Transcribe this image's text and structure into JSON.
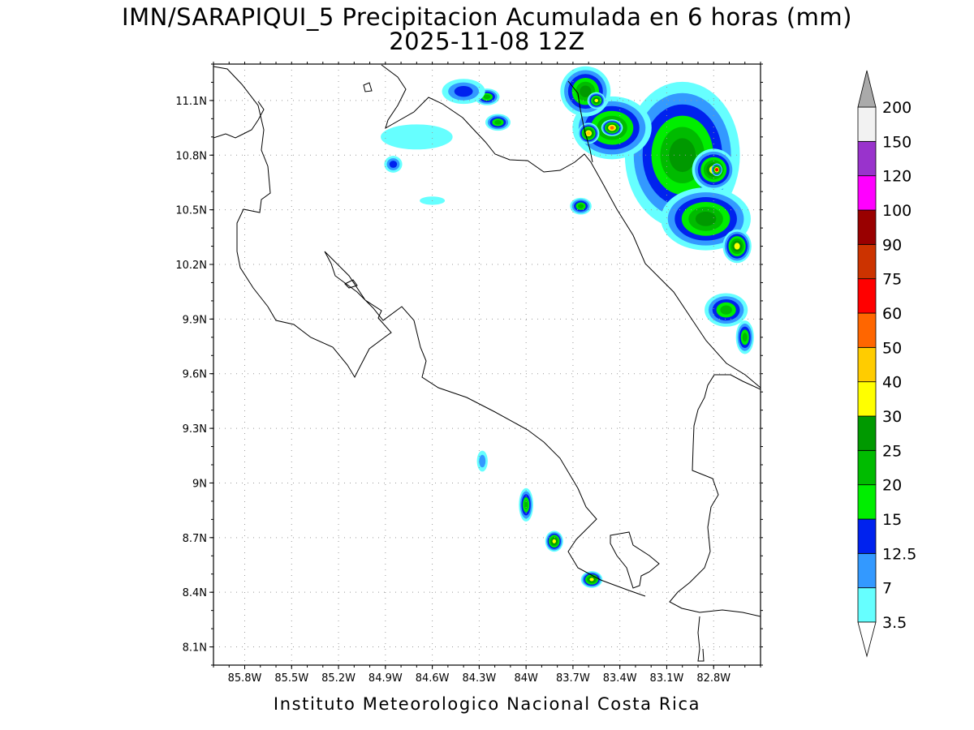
{
  "title": {
    "line1": "IMN/SARAPIQUI_5 Precipitacion Acumulada en 6 horas (mm)",
    "line2": "2025-11-08 12Z"
  },
  "footer": "Instituto Meteorologico Nacional Costa Rica",
  "map": {
    "lon_range": [
      -86.0,
      -82.5
    ],
    "lat_range": [
      8.0,
      11.3
    ],
    "lon_ticks": [
      "85.8W",
      "85.5W",
      "85.2W",
      "84.9W",
      "84.6W",
      "84.3W",
      "84W",
      "83.7W",
      "83.4W",
      "83.1W",
      "82.8W"
    ],
    "lon_tick_values": [
      -85.8,
      -85.5,
      -85.2,
      -84.9,
      -84.6,
      -84.3,
      -84.0,
      -83.7,
      -83.4,
      -83.1,
      -82.8
    ],
    "lat_ticks": [
      "8.1N",
      "8.4N",
      "8.7N",
      "9N",
      "9.3N",
      "9.6N",
      "9.9N",
      "10.2N",
      "10.5N",
      "10.8N",
      "11.1N"
    ],
    "lat_tick_values": [
      8.1,
      8.4,
      8.7,
      9.0,
      9.3,
      9.6,
      9.9,
      10.2,
      10.5,
      10.8,
      11.1
    ],
    "grid": "dotted"
  },
  "colorbar": {
    "unit": "mm",
    "labels": [
      "3.5",
      "7",
      "12.5",
      "15",
      "20",
      "25",
      "30",
      "40",
      "50",
      "60",
      "75",
      "90",
      "100",
      "120",
      "150",
      "200"
    ],
    "colors": [
      "#66ffff",
      "#3399ff",
      "#0022ee",
      "#00ee00",
      "#00bb00",
      "#009900",
      "#ffff00",
      "#ffcc00",
      "#ff6600",
      "#ff0000",
      "#cc3300",
      "#990000",
      "#ff00ff",
      "#9933cc",
      "#f2f2f2",
      "#aaaaaa"
    ]
  },
  "precip_cells": [
    {
      "lon": -83.0,
      "lat": 10.8,
      "level": "25",
      "rx": 0.32,
      "ry": 0.35
    },
    {
      "lon": -82.8,
      "lat": 10.72,
      "level": "30",
      "rx": 0.12,
      "ry": 0.1
    },
    {
      "lon": -82.78,
      "lat": 10.72,
      "level": "60",
      "rx": 0.03,
      "ry": 0.03
    },
    {
      "lon": -83.45,
      "lat": 10.95,
      "level": "25",
      "rx": 0.22,
      "ry": 0.15
    },
    {
      "lon": -83.45,
      "lat": 10.95,
      "level": "50",
      "rx": 0.06,
      "ry": 0.04
    },
    {
      "lon": -83.6,
      "lat": 10.92,
      "level": "40",
      "rx": 0.06,
      "ry": 0.05
    },
    {
      "lon": -83.62,
      "lat": 11.15,
      "level": "25",
      "rx": 0.14,
      "ry": 0.12
    },
    {
      "lon": -83.55,
      "lat": 11.1,
      "level": "30",
      "rx": 0.05,
      "ry": 0.04
    },
    {
      "lon": -82.85,
      "lat": 10.45,
      "level": "25",
      "rx": 0.25,
      "ry": 0.15
    },
    {
      "lon": -82.65,
      "lat": 10.3,
      "level": "30",
      "rx": 0.08,
      "ry": 0.08
    },
    {
      "lon": -82.72,
      "lat": 9.95,
      "level": "20",
      "rx": 0.12,
      "ry": 0.08
    },
    {
      "lon": -82.6,
      "lat": 9.8,
      "level": "20",
      "rx": 0.05,
      "ry": 0.08
    },
    {
      "lon": -84.18,
      "lat": 10.98,
      "level": "20",
      "rx": 0.07,
      "ry": 0.04
    },
    {
      "lon": -84.25,
      "lat": 11.12,
      "level": "20",
      "rx": 0.07,
      "ry": 0.04
    },
    {
      "lon": -84.4,
      "lat": 11.15,
      "level": "12.5",
      "rx": 0.12,
      "ry": 0.06
    },
    {
      "lon": -84.7,
      "lat": 10.9,
      "level": "3.5",
      "rx": 0.2,
      "ry": 0.06
    },
    {
      "lon": -84.85,
      "lat": 10.75,
      "level": "12.5",
      "rx": 0.05,
      "ry": 0.04
    },
    {
      "lon": -84.6,
      "lat": 10.55,
      "level": "3.5",
      "rx": 0.07,
      "ry": 0.02
    },
    {
      "lon": -83.65,
      "lat": 10.52,
      "level": "20",
      "rx": 0.06,
      "ry": 0.04
    },
    {
      "lon": -84.28,
      "lat": 9.12,
      "level": "7",
      "rx": 0.03,
      "ry": 0.05
    },
    {
      "lon": -84.0,
      "lat": 8.88,
      "level": "20",
      "rx": 0.04,
      "ry": 0.08
    },
    {
      "lon": -83.82,
      "lat": 8.68,
      "level": "30",
      "rx": 0.05,
      "ry": 0.05
    },
    {
      "lon": -83.58,
      "lat": 8.47,
      "level": "30",
      "rx": 0.06,
      "ry": 0.04
    }
  ]
}
